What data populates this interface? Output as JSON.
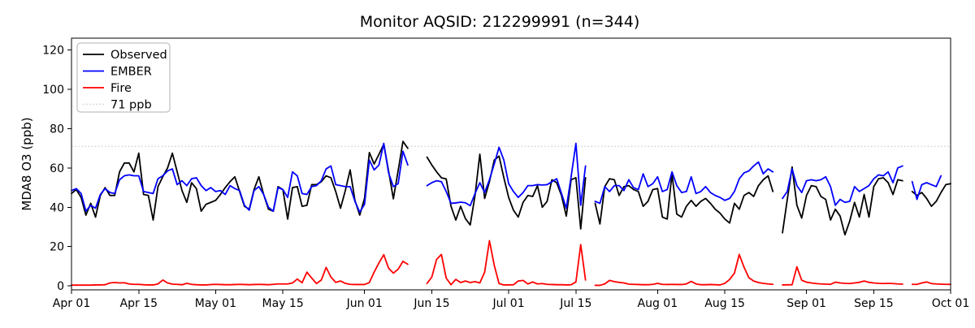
{
  "title": "Monitor AQSID: 212299991 (n=344)",
  "chart_data": {
    "type": "line",
    "title": "Monitor AQSID: 212299991 (n=344)",
    "xlabel": "",
    "ylabel": "MDA8 O3 (ppb)",
    "ylim": [
      -2,
      126
    ],
    "yticks": [
      0,
      20,
      40,
      60,
      80,
      100,
      120
    ],
    "x_start": "Apr 01",
    "x_end": "Oct 01",
    "x_total_days": 183,
    "x_tick_labels": [
      "Apr 01",
      "Apr 15",
      "May 01",
      "May 15",
      "Jun 01",
      "Jun 15",
      "Jul 01",
      "Jul 15",
      "Aug 01",
      "Aug 15",
      "Sep 01",
      "Sep 15",
      "Oct 01"
    ],
    "x_tick_days": [
      0,
      14,
      30,
      44,
      61,
      75,
      91,
      105,
      122,
      136,
      153,
      167,
      183
    ],
    "grid": "off",
    "legend_position": "upper-left",
    "threshold": {
      "label": "71 ppb",
      "value": 71,
      "color": "#d3d3d3",
      "style": "dotted"
    },
    "legend": [
      {
        "label": "Observed",
        "color": "#000000",
        "style": "solid"
      },
      {
        "label": "EMBER",
        "color": "#0000ff",
        "style": "solid"
      },
      {
        "label": "Fire",
        "color": "#ff0000",
        "style": "solid"
      },
      {
        "label": "71 ppb",
        "color": "#d3d3d3",
        "style": "dotted"
      }
    ],
    "series": [
      {
        "name": "Observed",
        "color": "#000000",
        "values": [
          47,
          49,
          45,
          36,
          42,
          35,
          46,
          50,
          46,
          46,
          58,
          62.5,
          62.5,
          58,
          67.5,
          46.5,
          46,
          33.5,
          50.5,
          55.5,
          60,
          67.5,
          58,
          48.5,
          42.5,
          52.5,
          49.5,
          38,
          41.5,
          42.5,
          43.5,
          46.5,
          50,
          53,
          55.5,
          48,
          40.5,
          39,
          49,
          55.5,
          46.5,
          39,
          38,
          50.5,
          49,
          34,
          50,
          50.5,
          40.5,
          41,
          51.5,
          51.5,
          53,
          56,
          55,
          48,
          39.5,
          48.5,
          59,
          43.5,
          36,
          44.5,
          67.8,
          62,
          66.9,
          72,
          58.5,
          44.3,
          58.7,
          73.5,
          70,
          null,
          null,
          null,
          65.5,
          61.5,
          58,
          55,
          54.4,
          40.5,
          33.5,
          40.5,
          34.2,
          31,
          46,
          67,
          44.5,
          53,
          64,
          66,
          55,
          45,
          38.5,
          35,
          42.5,
          46,
          45.5,
          51,
          40,
          43,
          54,
          52.5,
          46,
          35.5,
          54,
          55,
          29,
          55,
          null,
          42,
          31.5,
          50.5,
          54.5,
          54,
          46,
          50.5,
          51,
          49,
          48,
          40.5,
          43,
          49,
          49.5,
          35,
          34,
          57,
          36.5,
          35,
          40.5,
          43.5,
          40.5,
          43,
          44.5,
          42,
          39,
          37,
          34,
          32,
          42,
          39,
          46,
          47.5,
          45.5,
          51,
          54,
          56,
          48,
          null,
          27,
          44,
          60.5,
          41,
          34.5,
          46,
          51,
          50.5,
          45.5,
          44,
          33.5,
          39,
          35.5,
          26,
          33,
          42.5,
          35,
          46.5,
          35,
          50.5,
          54.5,
          55,
          52.5,
          46.5,
          54,
          53.5,
          null,
          48,
          46,
          47.5,
          44.5,
          40.5,
          43,
          47.5,
          51.5,
          52
        ]
      },
      {
        "name": "EMBER",
        "color": "#0000ff",
        "values": [
          48.5,
          49.5,
          47,
          38,
          41,
          39.5,
          46.5,
          49.5,
          47.5,
          47,
          54,
          56,
          56.5,
          56,
          56,
          48,
          47.5,
          47,
          54.5,
          56,
          58.5,
          59.5,
          51.5,
          53.5,
          51,
          54.5,
          55,
          51,
          48.5,
          50,
          48,
          48.5,
          46.5,
          51,
          49.5,
          48.5,
          41,
          38.5,
          48.5,
          50.5,
          46.5,
          40,
          38,
          50,
          49,
          45,
          58,
          56,
          47,
          46.5,
          50.5,
          51,
          53.5,
          59.5,
          61,
          51.5,
          51,
          50.5,
          50.5,
          43,
          37.5,
          41.5,
          64,
          59,
          61.5,
          72.5,
          57.5,
          50.5,
          52,
          68.5,
          61.5,
          null,
          null,
          null,
          51,
          52.5,
          53.5,
          53,
          48,
          42,
          42.2,
          42.6,
          42.3,
          40.8,
          47,
          52.5,
          47.5,
          54,
          62,
          70.5,
          64,
          52,
          48,
          45,
          47.5,
          51,
          51,
          51.5,
          51.3,
          51.5,
          53,
          54.5,
          47,
          39.5,
          55.5,
          72.5,
          41,
          61,
          null,
          43,
          42,
          50.5,
          48,
          51,
          51,
          48.5,
          54,
          50,
          49,
          57,
          50.5,
          52,
          55.5,
          48,
          49,
          58,
          51,
          47.5,
          48,
          55.5,
          47,
          48,
          50.5,
          47.5,
          46,
          45,
          43.5,
          44.5,
          48,
          54.5,
          57.5,
          58.5,
          61,
          63,
          57,
          59.5,
          58,
          null,
          44.5,
          48,
          59.5,
          51,
          47.5,
          53.5,
          54,
          53.5,
          54,
          55.5,
          50.5,
          41,
          44,
          42.5,
          43,
          50.5,
          48,
          49.5,
          51,
          54.5,
          56.5,
          56,
          58,
          52.5,
          60,
          61,
          null,
          53,
          44,
          51.5,
          52.5,
          51.5,
          50.5,
          56,
          null,
          null
        ]
      },
      {
        "name": "Fire",
        "color": "#ff0000",
        "values": [
          0.4,
          0.4,
          0.4,
          0.4,
          0.4,
          0.5,
          0.5,
          0.6,
          1.5,
          1.7,
          1.5,
          1.6,
          1,
          0.8,
          0.8,
          0.6,
          0.5,
          0.5,
          1,
          3,
          1.5,
          0.9,
          0.8,
          0.6,
          1.3,
          0.8,
          0.6,
          0.5,
          0.5,
          0.7,
          0.8,
          0.7,
          0.6,
          0.6,
          0.7,
          0.8,
          0.7,
          0.6,
          0.7,
          0.8,
          0.7,
          0.6,
          0.8,
          1,
          1,
          1,
          1.5,
          3.5,
          1.6,
          7,
          4,
          1.2,
          3,
          9.4,
          4.5,
          1.8,
          2.5,
          1.3,
          0.8,
          0.7,
          0.7,
          0.7,
          1.7,
          7,
          11.7,
          15.9,
          9,
          6.5,
          8.5,
          12.5,
          11,
          null,
          null,
          null,
          1.2,
          4.5,
          13.5,
          16,
          4,
          0.6,
          3.3,
          1.7,
          2.5,
          1.7,
          2.2,
          1.5,
          7,
          23,
          10.5,
          1.2,
          0.5,
          0.5,
          0.6,
          2.5,
          2.8,
          1,
          2,
          1,
          1.2,
          0.8,
          0.7,
          0.6,
          0.6,
          0.5,
          0.6,
          2,
          21,
          3,
          null,
          0.3,
          0.3,
          1,
          2.8,
          2.2,
          1.8,
          1.5,
          0.9,
          0.8,
          0.7,
          0.6,
          0.6,
          0.8,
          1.3,
          0.8,
          0.7,
          0.8,
          0.7,
          0.7,
          1,
          2.3,
          1,
          0.6,
          0.6,
          0.7,
          0.6,
          0.5,
          1.3,
          3.3,
          6.5,
          16,
          9.5,
          4.2,
          2.5,
          1.7,
          1.3,
          1,
          0.8,
          null,
          0.5,
          0.55,
          0.6,
          9.7,
          2.9,
          1.9,
          1.5,
          1.2,
          1,
          0.9,
          0.8,
          1.9,
          1.5,
          1.3,
          1.2,
          1.5,
          1.8,
          2.5,
          1.8,
          1.5,
          1.3,
          1.2,
          1.3,
          1.2,
          1,
          0.9,
          null,
          0.8,
          0.8,
          1.5,
          2,
          1.2,
          1,
          0.9,
          0.8,
          0.8
        ]
      }
    ]
  }
}
